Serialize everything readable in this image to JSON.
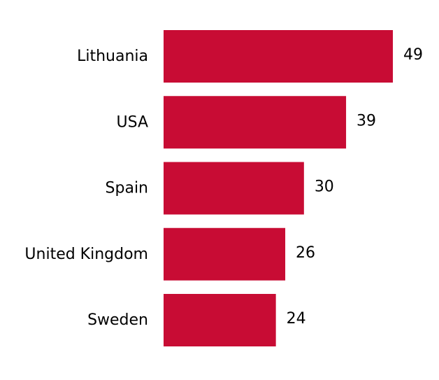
{
  "chart_data": {
    "type": "bar",
    "orientation": "horizontal",
    "categories": [
      "Lithuania",
      "USA",
      "Spain",
      "United Kingdom",
      "Sweden"
    ],
    "values": [
      49,
      39,
      30,
      26,
      24
    ],
    "data_labels": [
      "49",
      "39",
      "30",
      "26",
      "24"
    ],
    "title": "",
    "xlabel": "",
    "ylabel": "",
    "xlim": [
      0,
      49
    ],
    "grid": false,
    "legend": "none",
    "colors": {
      "bar": "#c80c34",
      "text": "#000000",
      "background": "#ffffff"
    }
  }
}
